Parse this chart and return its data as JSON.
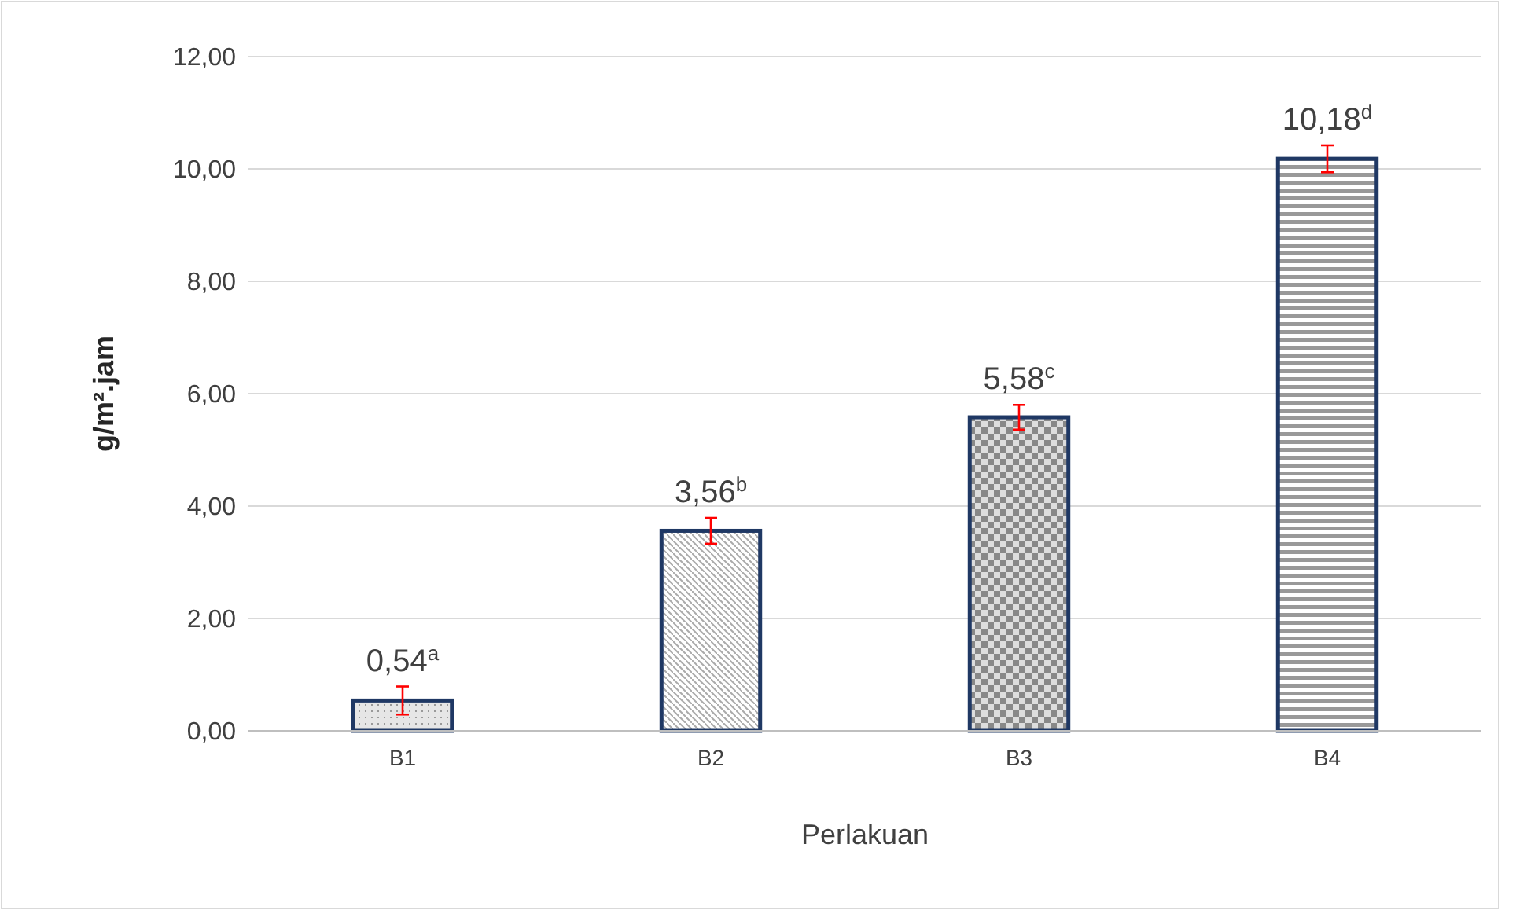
{
  "chart_data": {
    "type": "bar",
    "xlabel": "Perlakuan",
    "ylabel": "g/m².jam",
    "categories": [
      "B1",
      "B2",
      "B3",
      "B4"
    ],
    "values": [
      0.54,
      3.56,
      5.58,
      10.18
    ],
    "errors": [
      0.25,
      0.23,
      0.22,
      0.24
    ],
    "value_labels": [
      "0,54$^{a}$",
      "3,56$^{b}$",
      "5,58$^{c}$",
      "10,18$^{d}$"
    ],
    "color": "#1f3864",
    "ylim": [
      0,
      12
    ],
    "yticks": [
      {
        "value": 0,
        "label": "0,00"
      },
      {
        "value": 2,
        "label": "2,00"
      },
      {
        "value": 4,
        "label": "4,00"
      },
      {
        "value": 6,
        "label": "6,00"
      },
      {
        "value": 8,
        "label": "8,00"
      },
      {
        "value": 10,
        "label": "10,00"
      },
      {
        "value": 12,
        "label": "12,00"
      }
    ],
    "grid": "y"
  }
}
